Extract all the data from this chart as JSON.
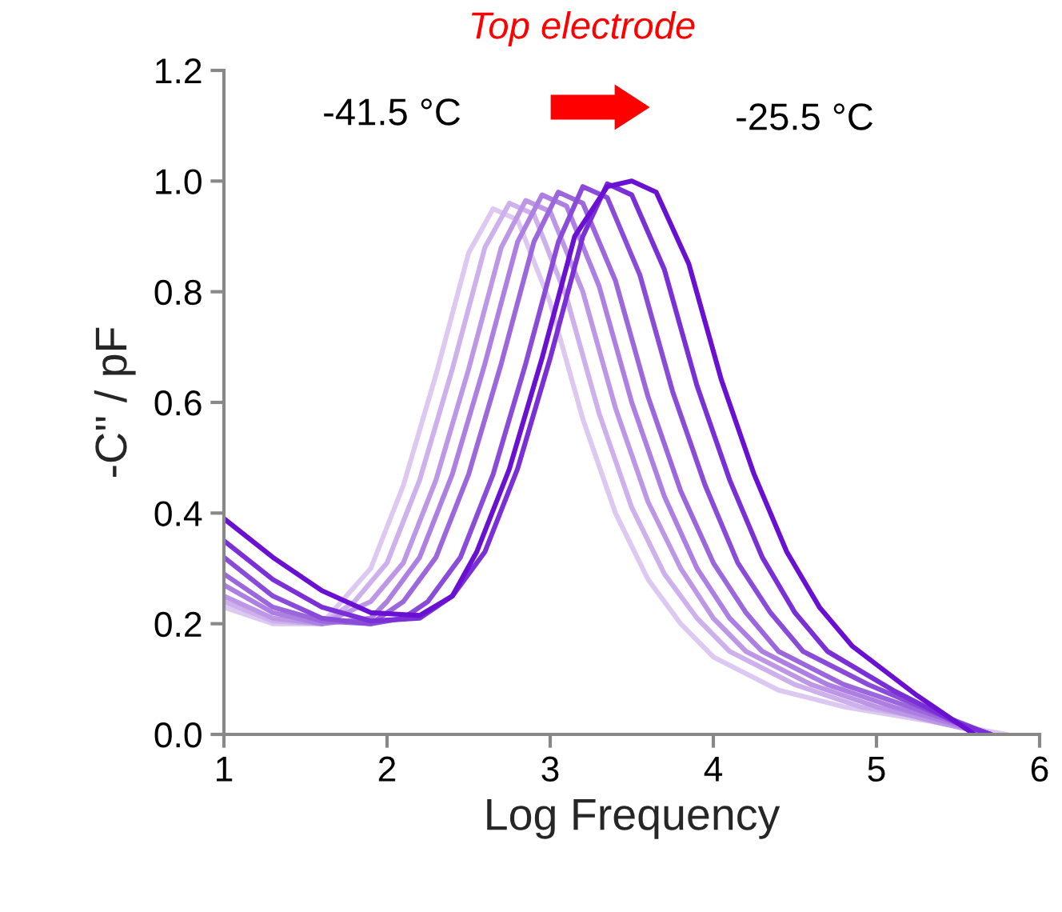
{
  "chart_data": {
    "type": "line",
    "xlabel": "Log Frequency",
    "ylabel": "-C'' / pF",
    "annotations": [
      "Top electrode",
      "-41.5 °C",
      "-25.5 °C"
    ],
    "xlim": [
      1,
      6
    ],
    "xticks": [
      1,
      2,
      3,
      4,
      5,
      6
    ],
    "ylim": [
      0,
      1.2
    ],
    "yticks": [
      {
        "value": 0,
        "label": "0.0"
      },
      {
        "value": 0.2,
        "label": "0.2"
      },
      {
        "value": 0.4,
        "label": "0.4"
      },
      {
        "value": 0.6,
        "label": "0.6"
      },
      {
        "value": 0.8,
        "label": "0.8"
      },
      {
        "value": 1.0,
        "label": "1.0"
      },
      {
        "value": 1.2,
        "label": "1.2"
      }
    ],
    "grid": false,
    "legend": false,
    "series": [
      {
        "color": "#dcc8f0",
        "x": [
          1,
          1.3,
          1.6,
          1.9,
          2.1,
          2.3,
          2.5,
          2.65,
          2.8,
          3.0,
          3.2,
          3.4,
          3.6,
          3.8,
          4.0,
          4.4,
          4.8,
          5.2,
          5.6,
          5.8
        ],
        "values": [
          0.23,
          0.2,
          0.2,
          0.3,
          0.45,
          0.65,
          0.87,
          0.95,
          0.93,
          0.78,
          0.57,
          0.4,
          0.28,
          0.2,
          0.14,
          0.08,
          0.05,
          0.03,
          0.01,
          0.0
        ]
      },
      {
        "color": "#cdb0ec",
        "x": [
          1,
          1.3,
          1.6,
          1.8,
          2.0,
          2.2,
          2.4,
          2.6,
          2.75,
          2.9,
          3.1,
          3.3,
          3.5,
          3.7,
          3.9,
          4.1,
          4.5,
          4.9,
          5.3,
          5.7
        ],
        "values": [
          0.24,
          0.205,
          0.2,
          0.24,
          0.31,
          0.46,
          0.66,
          0.88,
          0.96,
          0.94,
          0.79,
          0.58,
          0.41,
          0.29,
          0.21,
          0.15,
          0.09,
          0.05,
          0.03,
          0.0
        ]
      },
      {
        "color": "#bd97e6",
        "x": [
          1,
          1.3,
          1.6,
          1.9,
          2.1,
          2.3,
          2.5,
          2.7,
          2.85,
          3.0,
          3.2,
          3.4,
          3.6,
          3.8,
          4.0,
          4.2,
          4.6,
          5.0,
          5.4,
          5.7
        ],
        "values": [
          0.25,
          0.21,
          0.2,
          0.24,
          0.31,
          0.46,
          0.66,
          0.88,
          0.965,
          0.945,
          0.8,
          0.59,
          0.42,
          0.3,
          0.21,
          0.15,
          0.09,
          0.05,
          0.02,
          0.0
        ]
      },
      {
        "color": "#ad7fe2",
        "x": [
          1,
          1.3,
          1.6,
          1.9,
          2.0,
          2.2,
          2.4,
          2.6,
          2.8,
          2.95,
          3.1,
          3.3,
          3.5,
          3.7,
          3.9,
          4.1,
          4.3,
          4.7,
          5.1,
          5.7
        ],
        "values": [
          0.27,
          0.22,
          0.2,
          0.21,
          0.24,
          0.32,
          0.47,
          0.67,
          0.89,
          0.975,
          0.955,
          0.81,
          0.6,
          0.43,
          0.3,
          0.21,
          0.15,
          0.09,
          0.05,
          0.0
        ]
      },
      {
        "color": "#9c66dd",
        "x": [
          1,
          1.3,
          1.6,
          1.9,
          2.1,
          2.3,
          2.5,
          2.7,
          2.9,
          3.05,
          3.2,
          3.4,
          3.6,
          3.8,
          4.0,
          4.2,
          4.4,
          4.8,
          5.2,
          5.7
        ],
        "values": [
          0.29,
          0.23,
          0.205,
          0.2,
          0.24,
          0.32,
          0.47,
          0.67,
          0.89,
          0.98,
          0.96,
          0.82,
          0.61,
          0.44,
          0.31,
          0.22,
          0.15,
          0.09,
          0.05,
          0.0
        ]
      },
      {
        "color": "#8b4bd9",
        "x": [
          1,
          1.3,
          1.6,
          1.9,
          2.1,
          2.25,
          2.45,
          2.65,
          2.85,
          3.05,
          3.2,
          3.35,
          3.55,
          3.75,
          3.95,
          4.15,
          4.35,
          4.55,
          4.95,
          5.35,
          5.7
        ],
        "values": [
          0.32,
          0.25,
          0.21,
          0.2,
          0.21,
          0.24,
          0.32,
          0.47,
          0.67,
          0.89,
          0.99,
          0.97,
          0.83,
          0.62,
          0.45,
          0.31,
          0.22,
          0.15,
          0.09,
          0.04,
          0.0
        ]
      },
      {
        "color": "#7a30d6",
        "x": [
          1,
          1.3,
          1.6,
          1.9,
          2.2,
          2.4,
          2.6,
          2.8,
          3.0,
          3.2,
          3.35,
          3.5,
          3.7,
          3.9,
          4.1,
          4.3,
          4.5,
          4.7,
          5.1,
          5.5,
          5.7
        ],
        "values": [
          0.35,
          0.28,
          0.23,
          0.205,
          0.21,
          0.25,
          0.33,
          0.48,
          0.68,
          0.9,
          0.995,
          0.975,
          0.84,
          0.63,
          0.46,
          0.32,
          0.22,
          0.15,
          0.08,
          0.02,
          0.0
        ]
      },
      {
        "color": "#6a10d2",
        "x": [
          1,
          1.3,
          1.6,
          1.9,
          2.2,
          2.4,
          2.55,
          2.75,
          2.95,
          3.15,
          3.35,
          3.5,
          3.65,
          3.85,
          4.05,
          4.25,
          4.45,
          4.65,
          4.85,
          5.25,
          5.6
        ],
        "values": [
          0.39,
          0.32,
          0.26,
          0.22,
          0.215,
          0.25,
          0.33,
          0.48,
          0.68,
          0.9,
          0.99,
          1.0,
          0.98,
          0.85,
          0.64,
          0.47,
          0.33,
          0.23,
          0.16,
          0.07,
          0.0
        ]
      }
    ]
  }
}
